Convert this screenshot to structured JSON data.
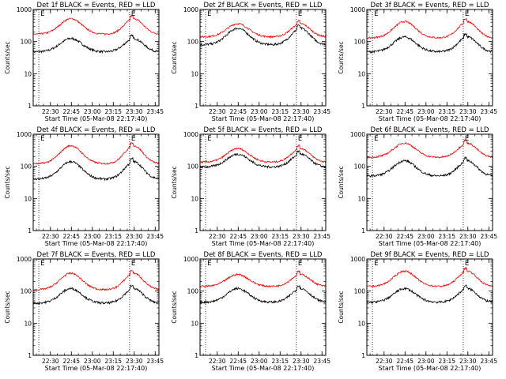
{
  "chart_data": [
    {
      "type": "line",
      "title": "Det 1f BLACK = Events, RED = LLD",
      "xlabel": "Start Time (05-Mar-08 22:17:40)",
      "ylabel": "Counts/sec",
      "yscale": "log",
      "ylim": [
        1,
        1000
      ],
      "xticks": [
        "22:30",
        "22:45",
        "23:00",
        "23:15",
        "23:30",
        "23:45"
      ],
      "yticks": [
        "1",
        "10",
        "100",
        "1000"
      ],
      "markers": [
        "E",
        "E"
      ],
      "series": [
        {
          "name": "Events",
          "color": "#000000",
          "base": 48,
          "peak": 125
        },
        {
          "name": "LLD",
          "color": "#ff0000",
          "base": 170,
          "peak": 520
        }
      ]
    },
    {
      "type": "line",
      "title": "Det 2f BLACK = Events, RED = LLD",
      "xlabel": "Start Time (05-Mar-08 22:17:40)",
      "ylabel": "Counts/sec",
      "yscale": "log",
      "ylim": [
        1,
        1000
      ],
      "xticks": [
        "22:30",
        "22:45",
        "23:00",
        "23:15",
        "23:30",
        "23:45"
      ],
      "yticks": [
        "1",
        "10",
        "100",
        "1000"
      ],
      "markers": [
        "E",
        "E"
      ],
      "series": [
        {
          "name": "Events",
          "color": "#000000",
          "base": 80,
          "peak": 260
        },
        {
          "name": "LLD",
          "color": "#ff0000",
          "base": 140,
          "peak": 360
        }
      ]
    },
    {
      "type": "line",
      "title": "Det 3f BLACK = Events, RED = LLD",
      "xlabel": "Start Time (05-Mar-08 22:17:40)",
      "ylabel": "Counts/sec",
      "yscale": "log",
      "ylim": [
        1,
        1000
      ],
      "xticks": [
        "22:30",
        "22:45",
        "23:00",
        "23:15",
        "23:30",
        "23:45"
      ],
      "yticks": [
        "1",
        "10",
        "100",
        "1000"
      ],
      "markers": [
        "E",
        "E"
      ],
      "series": [
        {
          "name": "Events",
          "color": "#000000",
          "base": 48,
          "peak": 140
        },
        {
          "name": "LLD",
          "color": "#ff0000",
          "base": 130,
          "peak": 420
        }
      ]
    },
    {
      "type": "line",
      "title": "Det 4f BLACK = Events, RED = LLD",
      "xlabel": "Start Time (05-Mar-08 22:17:40)",
      "ylabel": "Counts/sec",
      "yscale": "log",
      "ylim": [
        1,
        1000
      ],
      "xticks": [
        "22:30",
        "22:45",
        "23:00",
        "23:15",
        "23:30",
        "23:45"
      ],
      "yticks": [
        "1",
        "10",
        "100",
        "1000"
      ],
      "markers": [
        "E",
        "E"
      ],
      "series": [
        {
          "name": "Events",
          "color": "#000000",
          "base": 40,
          "peak": 140
        },
        {
          "name": "LLD",
          "color": "#ff0000",
          "base": 120,
          "peak": 440
        }
      ]
    },
    {
      "type": "line",
      "title": "Det 5f BLACK = Events, RED = LLD",
      "xlabel": "Start Time (05-Mar-08 22:17:40)",
      "ylabel": "Counts/sec",
      "yscale": "log",
      "ylim": [
        1,
        1000
      ],
      "xticks": [
        "22:30",
        "22:45",
        "23:00",
        "23:15",
        "23:30",
        "23:45"
      ],
      "yticks": [
        "1",
        "10",
        "100",
        "1000"
      ],
      "markers": [
        "E",
        "E"
      ],
      "series": [
        {
          "name": "Events",
          "color": "#000000",
          "base": 95,
          "peak": 240
        },
        {
          "name": "LLD",
          "color": "#ff0000",
          "base": 135,
          "peak": 360
        }
      ]
    },
    {
      "type": "line",
      "title": "Det 6f BLACK = Events, RED = LLD",
      "xlabel": "Start Time (05-Mar-08 22:17:40)",
      "ylabel": "Counts/sec",
      "yscale": "log",
      "ylim": [
        1,
        1000
      ],
      "xticks": [
        "22:30",
        "22:45",
        "23:00",
        "23:15",
        "23:30",
        "23:45"
      ],
      "yticks": [
        "1",
        "10",
        "100",
        "1000"
      ],
      "markers": [
        "E",
        "E"
      ],
      "series": [
        {
          "name": "Events",
          "color": "#000000",
          "base": 50,
          "peak": 150
        },
        {
          "name": "LLD",
          "color": "#ff0000",
          "base": 190,
          "peak": 530
        }
      ]
    },
    {
      "type": "line",
      "title": "Det 7f BLACK = Events, RED = LLD",
      "xlabel": "Start Time (05-Mar-08 22:17:40)",
      "ylabel": "Counts/sec",
      "yscale": "log",
      "ylim": [
        1,
        1000
      ],
      "xticks": [
        "22:30",
        "22:45",
        "23:00",
        "23:15",
        "23:30",
        "23:45"
      ],
      "yticks": [
        "1",
        "10",
        "100",
        "1000"
      ],
      "markers": [
        "E",
        "E"
      ],
      "series": [
        {
          "name": "Events",
          "color": "#000000",
          "base": 42,
          "peak": 120
        },
        {
          "name": "LLD",
          "color": "#ff0000",
          "base": 110,
          "peak": 360
        }
      ]
    },
    {
      "type": "line",
      "title": "Det 8f BLACK = Events, RED = LLD",
      "xlabel": "Start Time (05-Mar-08 22:17:40)",
      "ylabel": "Counts/sec",
      "yscale": "log",
      "ylim": [
        1,
        1000
      ],
      "xticks": [
        "22:30",
        "22:45",
        "23:00",
        "23:15",
        "23:30",
        "23:45"
      ],
      "yticks": [
        "1",
        "10",
        "100",
        "1000"
      ],
      "markers": [
        "E",
        "E"
      ],
      "series": [
        {
          "name": "Events",
          "color": "#000000",
          "base": 45,
          "peak": 120
        },
        {
          "name": "LLD",
          "color": "#ff0000",
          "base": 140,
          "peak": 330
        }
      ]
    },
    {
      "type": "line",
      "title": "Det 9f BLACK = Events, RED = LLD",
      "xlabel": "Start Time (05-Mar-08 22:17:40)",
      "ylabel": "Counts/sec",
      "yscale": "log",
      "ylim": [
        1,
        1000
      ],
      "xticks": [
        "22:30",
        "22:45",
        "23:00",
        "23:15",
        "23:30",
        "23:45"
      ],
      "yticks": [
        "1",
        "10",
        "100",
        "1000"
      ],
      "markers": [
        "E",
        "E"
      ],
      "series": [
        {
          "name": "Events",
          "color": "#000000",
          "base": 45,
          "peak": 120
        },
        {
          "name": "LLD",
          "color": "#ff0000",
          "base": 140,
          "peak": 420
        }
      ]
    }
  ]
}
